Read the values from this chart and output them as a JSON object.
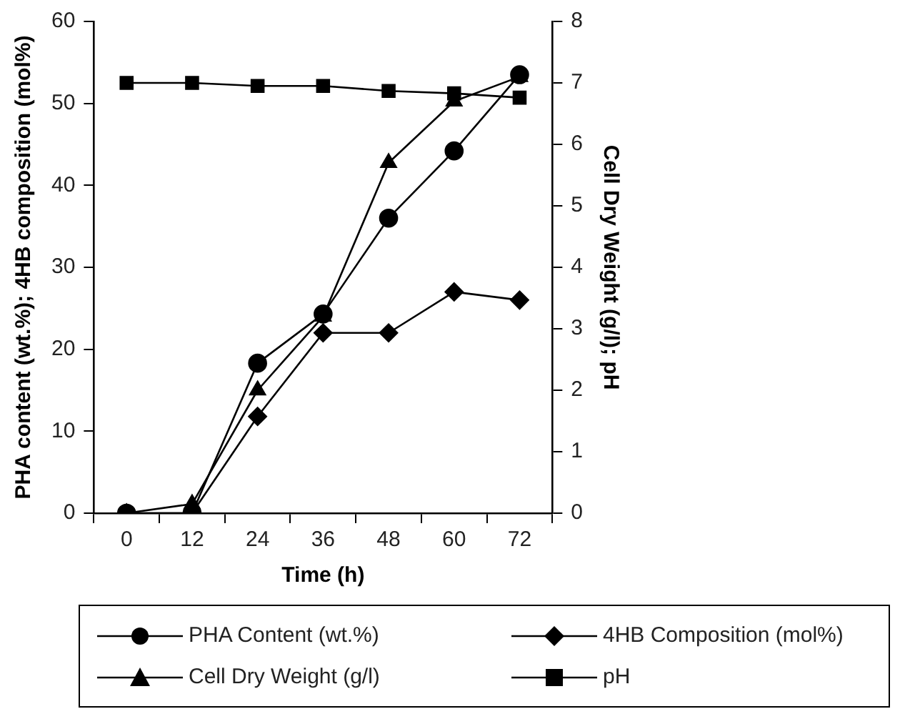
{
  "chart_data": {
    "type": "line",
    "xlabel": "Time (h)",
    "ylabel": "PHA content (wt.%); 4HB composition (mol%)",
    "y2label": "Cell Dry Weight (g/l); pH",
    "categories": [
      "0",
      "12",
      "24",
      "36",
      "48",
      "60",
      "72"
    ],
    "ylim": [
      0,
      60
    ],
    "yticks": [
      0,
      10,
      20,
      30,
      40,
      50,
      60
    ],
    "y2lim": [
      0,
      8
    ],
    "y2ticks": [
      0,
      1,
      2,
      3,
      4,
      5,
      6,
      7,
      8
    ],
    "grid": false,
    "legend": "bottom",
    "line_style": "solid",
    "series": [
      {
        "name": "PHA Content (wt.%)",
        "color": "#000000",
        "marker": "circle",
        "values": [
          0,
          0,
          18.3,
          24.3,
          36,
          44.2,
          53.5
        ]
      },
      {
        "name": "4HB Composition (mol%)",
        "color": "#000000",
        "marker": "diamond",
        "values": [
          0,
          0,
          11.8,
          22,
          22,
          27,
          26
        ]
      },
      {
        "name": "Cell Dry Weight (g/l)",
        "color": "#000000",
        "marker": "triangle",
        "axis": "y2",
        "values": [
          0,
          0.15,
          2,
          3.2,
          5.7,
          6.7,
          7.1
        ]
      },
      {
        "name": "pH",
        "color": "#000000",
        "marker": "square",
        "axis": "y2",
        "values": [
          7,
          7,
          6.95,
          6.95,
          6.87,
          6.83,
          6.76
        ]
      }
    ]
  }
}
